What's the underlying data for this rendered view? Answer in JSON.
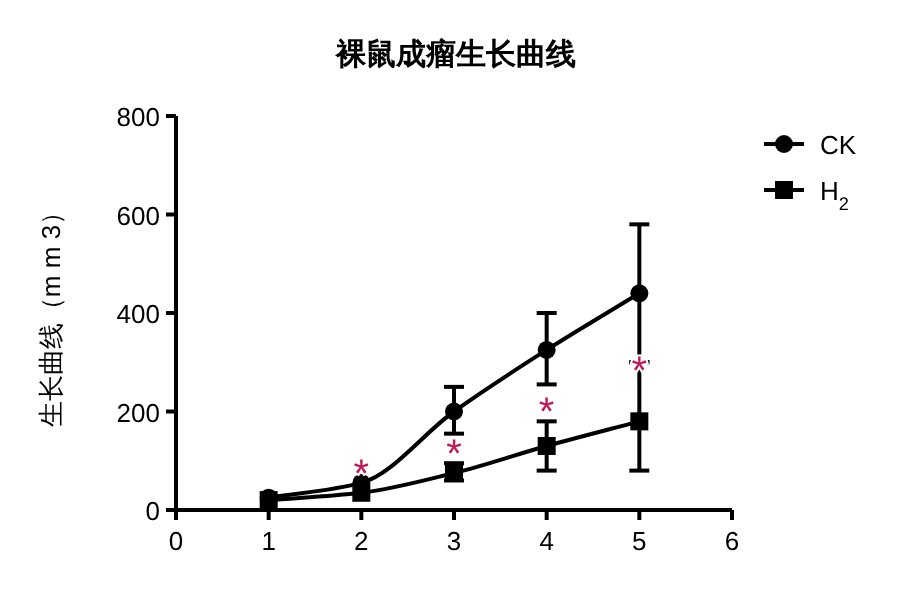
{
  "chart_data": {
    "type": "line",
    "title": "裸鼠成瘤生长曲线",
    "ylabel": "生长曲线（m m 3）",
    "x": [
      1,
      2,
      3,
      4,
      5
    ],
    "xlim": [
      0,
      6
    ],
    "xticks": [
      0,
      1,
      2,
      3,
      4,
      5,
      6
    ],
    "ylim": [
      0,
      800
    ],
    "yticks": [
      0,
      200,
      400,
      600,
      800
    ],
    "grid": false,
    "legend": "right",
    "series": [
      {
        "name": "CK",
        "color": "#000000",
        "marker": "circle",
        "values": [
          25,
          55,
          200,
          325,
          440
        ],
        "errors": [
          null,
          null,
          [
            155,
            250
          ],
          [
            255,
            400
          ],
          [
            300,
            580
          ]
        ]
      },
      {
        "name": "H$_{2}$",
        "color": "#000000",
        "marker": "square",
        "values": [
          20,
          35,
          75,
          130,
          180
        ],
        "errors": [
          null,
          null,
          [
            60,
            95
          ],
          [
            80,
            180
          ],
          [
            80,
            300
          ]
        ]
      }
    ],
    "annotations": [
      "*",
      "*",
      "*",
      "*"
    ]
  }
}
